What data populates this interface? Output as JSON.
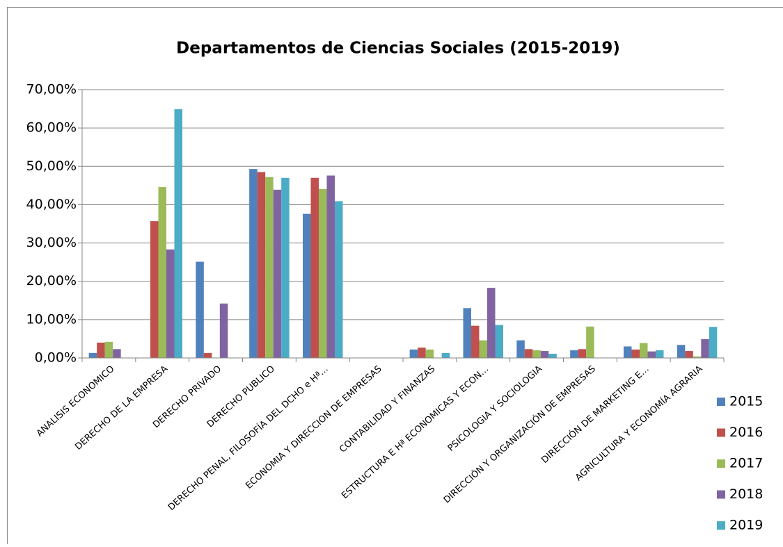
{
  "chart_data": {
    "type": "bar",
    "title": "Departamentos de Ciencias Sociales (2015-2019)",
    "categories": [
      "ANALISIS ECONOMICO",
      "DERECHO DE LA EMPRESA",
      "DERECHO PRIVADO",
      "DERECHO PUBLICO",
      "DERECHO PENAL, FILOSOFÍA DEL DCHO e Hª…",
      "ECONOMIA Y DIRECCION DE EMPRESAS",
      "CONTABILIDAD Y FINANZAS",
      "ESTRUCTURA E Hª ECONOMICAS Y ECON…",
      "PSICOLOGIA Y SOCIOLOGIA",
      "DIRECCIÓN Y ORGANIZACIÓN DE EMPRESAS",
      "DIRECCIÓN DE MARKETING E…",
      "AGRICULTURA Y ECONOMÍA AGRARIA"
    ],
    "series": [
      {
        "name": "2015",
        "color": "#4f81bd",
        "values": [
          1.3,
          0,
          25.1,
          49.3,
          37.6,
          0,
          2.2,
          13.0,
          4.6,
          2.0,
          3.0,
          3.4
        ]
      },
      {
        "name": "2016",
        "color": "#c0504d",
        "values": [
          4.0,
          35.7,
          1.3,
          48.5,
          47.0,
          0,
          2.7,
          8.4,
          2.3,
          2.3,
          2.2,
          1.8
        ]
      },
      {
        "name": "2017",
        "color": "#9bbb59",
        "values": [
          4.2,
          44.6,
          0,
          47.2,
          44.1,
          0,
          2.2,
          4.6,
          2.0,
          8.2,
          3.9,
          0.4
        ]
      },
      {
        "name": "2018",
        "color": "#8064a2",
        "values": [
          2.3,
          28.3,
          14.2,
          43.9,
          47.6,
          0,
          0,
          18.3,
          1.8,
          0,
          1.7,
          4.9
        ]
      },
      {
        "name": "2019",
        "color": "#4bacc6",
        "values": [
          0,
          64.9,
          0,
          47.0,
          40.9,
          0,
          1.3,
          8.6,
          1.1,
          0,
          2.0,
          8.1
        ]
      }
    ],
    "ylim": [
      0,
      70
    ],
    "yticks": [
      {
        "value": 0,
        "label": "0,00%"
      },
      {
        "value": 10,
        "label": "10,00%"
      },
      {
        "value": 20,
        "label": "20,00%"
      },
      {
        "value": 30,
        "label": "30,00%"
      },
      {
        "value": 40,
        "label": "40,00%"
      },
      {
        "value": 50,
        "label": "50,00%"
      },
      {
        "value": 60,
        "label": "60,00%"
      },
      {
        "value": 70,
        "label": "70,00%"
      }
    ],
    "grid": true,
    "legend": "right"
  }
}
